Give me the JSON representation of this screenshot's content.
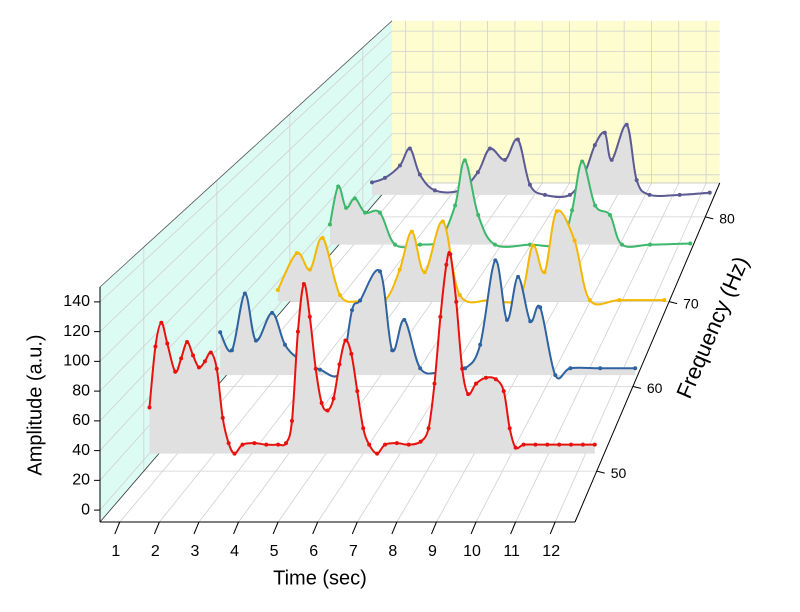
{
  "chart_data": {
    "type": "waterfall",
    "xlabel": "Time (sec)",
    "ylabel": "Amplitude (a.u.)",
    "zlabel": "Frequency (Hz)",
    "xlim": [
      0.5,
      12.5
    ],
    "xticks": [
      1,
      2,
      3,
      4,
      5,
      6,
      7,
      8,
      9,
      10,
      11,
      12
    ],
    "ylim": [
      -8,
      150
    ],
    "yticks": [
      0,
      20,
      40,
      60,
      80,
      100,
      120,
      140
    ],
    "zlim": [
      44,
      84
    ],
    "zticks": [
      50,
      60,
      70,
      80
    ],
    "grid": true,
    "fill": "#e0e0e0",
    "back_wall_color": "#fdfdd0",
    "side_wall_color": "#dcfbf3",
    "series": [
      {
        "name": "red",
        "color": "#e8120d",
        "z": 44,
        "x": [
          1.75,
          1.9,
          2.05,
          2.2,
          2.4,
          2.55,
          2.7,
          2.85,
          3.0,
          3.15,
          3.3,
          3.45,
          3.6,
          3.75,
          3.9,
          4.1,
          4.4,
          4.7,
          5.0,
          5.2,
          5.35,
          5.5,
          5.65,
          5.8,
          5.95,
          6.1,
          6.25,
          6.4,
          6.55,
          6.7,
          6.85,
          7.0,
          7.15,
          7.3,
          7.5,
          7.7,
          8.0,
          8.3,
          8.6,
          8.8,
          8.95,
          9.1,
          9.25,
          9.35,
          9.5,
          9.65,
          9.8,
          10.0,
          10.25,
          10.5,
          10.7,
          10.85,
          11.0,
          11.2,
          11.5,
          11.8,
          12.1,
          12.4,
          12.7,
          13.0
        ],
        "values": [
          69,
          110,
          126,
          112,
          93,
          102,
          113,
          104,
          96,
          100,
          106,
          95,
          62,
          45,
          38,
          44,
          45,
          44,
          44,
          45,
          60,
          120,
          152,
          130,
          95,
          72,
          67,
          75,
          98,
          114,
          105,
          80,
          55,
          44,
          38,
          44,
          45,
          44,
          46,
          55,
          85,
          130,
          165,
          172,
          140,
          95,
          78,
          85,
          89,
          88,
          80,
          55,
          42,
          44,
          44,
          44,
          44,
          44,
          44,
          44
        ]
      },
      {
        "name": "blue",
        "color": "#2f62a0",
        "z": 53,
        "x": [
          1.98,
          2.3,
          2.65,
          2.95,
          3.39,
          3.74,
          4.15,
          4.69,
          5.24,
          5.56,
          5.78,
          6.32,
          6.65,
          6.98,
          7.41,
          7.95,
          8.63,
          9.04,
          9.45,
          9.77,
          10.07,
          10.4,
          10.67,
          11.08,
          11.49,
          12.3,
          13.25
        ],
        "values": [
          74,
          61,
          102,
          68,
          88,
          65,
          54,
          47,
          45,
          90,
          97,
          118,
          61,
          83,
          48,
          45,
          48,
          65,
          126,
          83,
          114,
          82,
          92,
          43,
          48,
          48,
          48
        ]
      },
      {
        "name": "yellow",
        "color": "#f5b800",
        "z": 63,
        "x": [
          1.66,
          2.22,
          2.61,
          2.99,
          3.5,
          4.09,
          4.83,
          5.27,
          5.63,
          6.01,
          6.55,
          7.05,
          7.93,
          8.82,
          9.21,
          9.56,
          9.92,
          10.45,
          10.9,
          11.78,
          13.11
        ],
        "values": [
          48,
          77,
          64,
          89,
          44,
          39,
          40,
          64,
          94,
          62,
          102,
          44,
          40,
          42,
          83,
          62,
          110,
          87,
          40,
          40,
          40
        ]
      },
      {
        "name": "green",
        "color": "#3cb86b",
        "z": 70,
        "x": [
          1.77,
          2.03,
          2.28,
          2.56,
          2.88,
          3.35,
          3.83,
          4.62,
          5.25,
          5.73,
          6.04,
          6.46,
          6.99,
          8.1,
          9.05,
          9.43,
          9.75,
          10.16,
          10.63,
          11.01,
          11.9,
          13.17
        ],
        "values": [
          57,
          89,
          71,
          79,
          67,
          67,
          40,
          40,
          44,
          73,
          111,
          65,
          40,
          40,
          41,
          69,
          110,
          73,
          65,
          40,
          40,
          41
        ]
      },
      {
        "name": "purple",
        "color": "#5b5a92",
        "z": 75,
        "x": [
          2.02,
          2.45,
          2.95,
          3.28,
          3.61,
          4.11,
          4.94,
          5.54,
          5.94,
          6.44,
          6.87,
          7.27,
          7.77,
          8.6,
          9.1,
          9.43,
          9.76,
          9.99,
          10.49,
          10.82,
          11.25,
          12.25,
          13.25
        ],
        "values": [
          60,
          64,
          75,
          90,
          67,
          53,
          53,
          69,
          90,
          80,
          98,
          58,
          49,
          49,
          69,
          93,
          104,
          80,
          111,
          62,
          49,
          49,
          51
        ]
      }
    ]
  }
}
